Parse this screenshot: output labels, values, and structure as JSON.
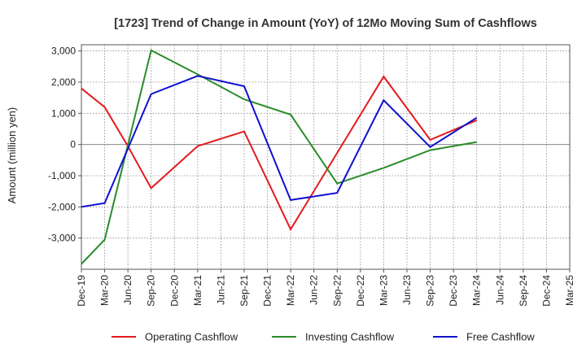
{
  "chart_data": {
    "type": "line",
    "title": "[1723]  Trend of Change in Amount (YoY) of 12Mo Moving Sum of Cashflows",
    "xlabel": "",
    "ylabel": "Amount (million yen)",
    "ylim": [
      -4000,
      3200
    ],
    "yticks": [
      3000,
      2000,
      1000,
      0,
      -1000,
      -2000,
      -3000
    ],
    "ytick_labels": [
      "3,000",
      "2,000",
      "1,000",
      "0",
      "-1,000",
      "-2,000",
      "-3,000"
    ],
    "categories": [
      "Dec-19",
      "Mar-20",
      "Jun-20",
      "Sep-20",
      "Dec-20",
      "Mar-21",
      "Jun-21",
      "Sep-21",
      "Dec-21",
      "Mar-22",
      "Jun-22",
      "Sep-22",
      "Dec-22",
      "Mar-23",
      "Jun-23",
      "Sep-23",
      "Dec-23",
      "Mar-24",
      "Jun-24",
      "Sep-24",
      "Dec-24",
      "Mar-25"
    ],
    "grid": true,
    "legend_position": "bottom",
    "series": [
      {
        "name": "Operating Cashflow",
        "color": "#e31a1c",
        "values": [
          1800,
          1200,
          -50,
          -1400,
          null,
          -50,
          null,
          420,
          null,
          -2720,
          null,
          null,
          null,
          2180,
          null,
          150,
          null,
          780,
          null,
          null,
          null,
          null
        ]
      },
      {
        "name": "Investing Cashflow",
        "color": "#2a8c2a",
        "values": [
          -3830,
          -3050,
          null,
          3020,
          null,
          2250,
          null,
          1450,
          null,
          960,
          null,
          -1250,
          null,
          -750,
          null,
          -180,
          null,
          80,
          null,
          null,
          null,
          null
        ]
      },
      {
        "name": "Free Cashflow",
        "color": "#1010d0",
        "values": [
          -2000,
          -1880,
          null,
          1620,
          null,
          2200,
          null,
          1870,
          null,
          -1780,
          null,
          -1550,
          null,
          1420,
          null,
          -80,
          null,
          860,
          null,
          null,
          null,
          null
        ]
      }
    ]
  }
}
